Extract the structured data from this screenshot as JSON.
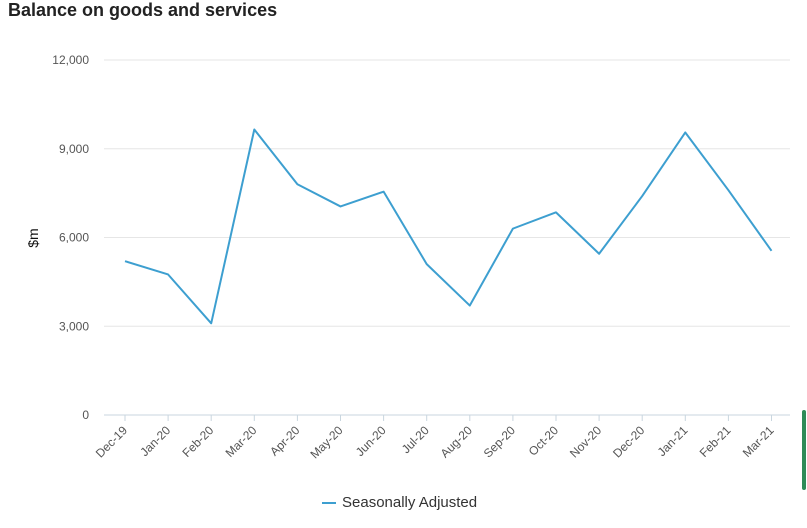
{
  "title": "Balance on goods and services",
  "chart_data": {
    "type": "line",
    "title": "Balance on goods and services",
    "xlabel": "",
    "ylabel": "$m",
    "categories": [
      "Dec-19",
      "Jan-20",
      "Feb-20",
      "Mar-20",
      "Apr-20",
      "May-20",
      "Jun-20",
      "Jul-20",
      "Aug-20",
      "Sep-20",
      "Oct-20",
      "Nov-20",
      "Dec-20",
      "Jan-21",
      "Feb-21",
      "Mar-21"
    ],
    "ylim": [
      0,
      12000
    ],
    "yticks": [
      0,
      3000,
      6000,
      9000,
      12000
    ],
    "ytick_labels": [
      "0",
      "3,000",
      "6,000",
      "9,000",
      "12,000"
    ],
    "grid": true,
    "legend_position": "bottom",
    "series": [
      {
        "name": "Seasonally Adjusted",
        "color": "#3d9fd0",
        "values": [
          5200,
          4750,
          3100,
          9650,
          7800,
          7050,
          7550,
          5100,
          3700,
          6300,
          6850,
          5450,
          7400,
          9550,
          7600,
          5550
        ]
      }
    ]
  },
  "legend": {
    "label": "Seasonally Adjusted"
  }
}
